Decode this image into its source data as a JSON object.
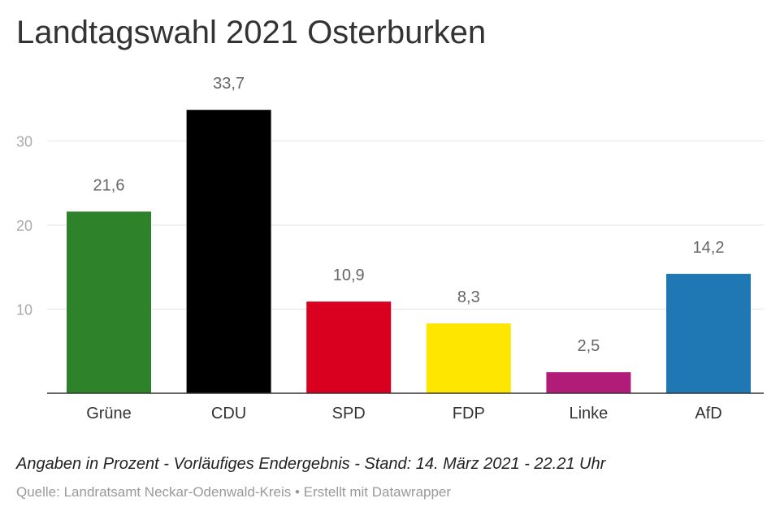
{
  "chart_data": {
    "type": "bar",
    "title": "Landtagswahl 2021 Osterburken",
    "categories": [
      "Grüne",
      "CDU",
      "SPD",
      "FDP",
      "Linke",
      "AfD"
    ],
    "values": [
      21.6,
      33.7,
      10.9,
      8.3,
      2.5,
      14.2
    ],
    "value_labels": [
      "21,6",
      "33,7",
      "10,9",
      "8,3",
      "2,5",
      "14,2"
    ],
    "colors": [
      "#2e8229",
      "#000000",
      "#d9001f",
      "#ffe600",
      "#b01c77",
      "#1f77b4"
    ],
    "yticks": [
      10,
      20,
      30
    ],
    "ylim": [
      0,
      35
    ],
    "grid": true,
    "xlabel": "",
    "ylabel": ""
  },
  "note": "Angaben in Prozent - Vorläufiges Endergebnis - Stand: 14. März 2021 - 22.21 Uhr",
  "source": "Quelle: Landratsamt Neckar-Odenwald-Kreis • Erstellt mit Datawrapper"
}
